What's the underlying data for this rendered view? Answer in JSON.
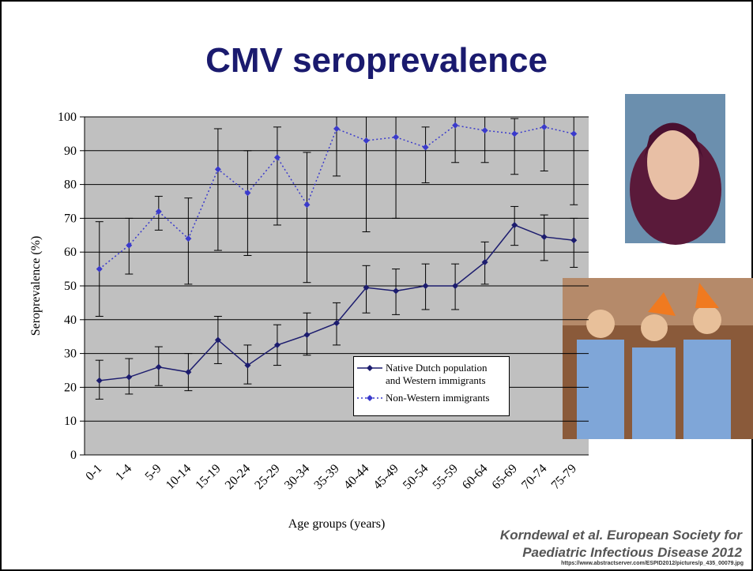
{
  "title": "CMV seroprevalence",
  "chart_data": {
    "type": "line",
    "x_label": "Age groups (years)",
    "y_label": "Seroprevalence (%)",
    "categories": [
      "0-1",
      "1-4",
      "5-9",
      "10-14",
      "15-19",
      "20-24",
      "25-29",
      "30-34",
      "35-39",
      "40-44",
      "45-49",
      "50-54",
      "55-59",
      "60-64",
      "65-69",
      "70-74",
      "75-79"
    ],
    "ylim": [
      0,
      100
    ],
    "yticks": [
      0,
      10,
      20,
      30,
      40,
      50,
      60,
      70,
      80,
      90,
      100
    ],
    "grid": true,
    "series": [
      {
        "name": "Native Dutch population and Western immigrants",
        "color": "#1c1c6e",
        "dash": "solid",
        "values": [
          22,
          23,
          26,
          24.5,
          34,
          26.5,
          32.5,
          35.5,
          39,
          49.5,
          48.5,
          50,
          50,
          57,
          68,
          64.5,
          63.5
        ],
        "low": [
          16.5,
          18,
          20.5,
          19,
          27,
          21,
          26.5,
          29.5,
          32.5,
          42,
          41.5,
          43,
          43,
          50.5,
          62,
          57.5,
          55.5
        ],
        "high": [
          28,
          28.5,
          32,
          30,
          41,
          32.5,
          38.5,
          42,
          45,
          56,
          55,
          56.5,
          56.5,
          63,
          73.5,
          71,
          70
        ]
      },
      {
        "name": "Non-Western immigrants",
        "color": "#3a3acc",
        "dash": "dotted",
        "values": [
          55,
          62,
          72,
          64,
          84.5,
          77.5,
          88,
          74,
          96.5,
          93,
          94,
          91,
          97.5,
          96,
          95,
          97,
          95
        ],
        "low": [
          41,
          53.5,
          66.5,
          50.5,
          60.5,
          59,
          68,
          51,
          82.5,
          66,
          70,
          80.5,
          86.5,
          86.5,
          83,
          84,
          74
        ],
        "high": [
          69,
          70,
          76.5,
          76,
          96.5,
          90,
          97,
          89.5,
          100,
          100,
          100,
          97,
          100,
          100,
          99.5,
          100,
          100
        ]
      }
    ]
  },
  "citation": "Korndewal et al. European Society for Paediatric Infectious Disease 2012",
  "url": "https://www.abstractserver.com/ESPID2012/pictures/p_435_00079.jpg"
}
